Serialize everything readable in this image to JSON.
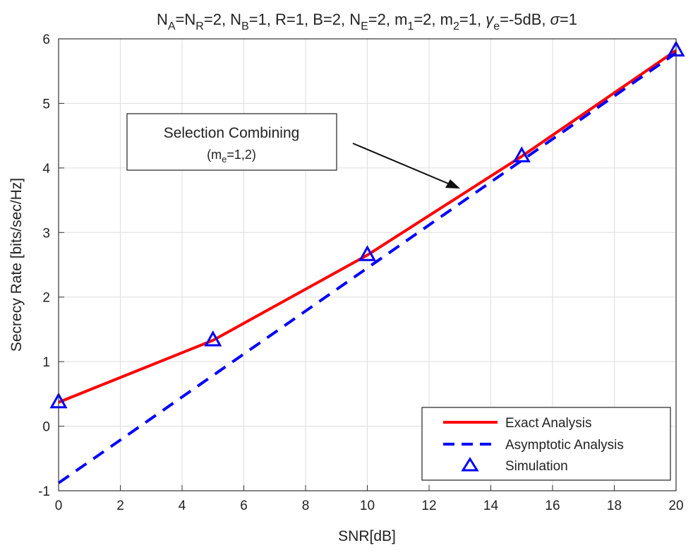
{
  "chart_data": {
    "type": "line",
    "title": "N_A=N_R=2, N_B=1, R=1, B=2, N_E=2, m_1=2, m_2=1, γ_e=-5dB, σ=1",
    "xlabel": "SNR[dB]",
    "ylabel": "Secrecy Rate [bits/sec/Hz]",
    "xlim": [
      0,
      20
    ],
    "ylim": [
      -1,
      6
    ],
    "xticks": [
      0,
      2,
      4,
      6,
      8,
      10,
      12,
      14,
      16,
      18,
      20
    ],
    "yticks": [
      -1,
      0,
      1,
      2,
      3,
      4,
      5,
      6
    ],
    "grid": true,
    "legend_position": "bottom-right",
    "series": [
      {
        "name": "Exact Analysis",
        "style": "solid",
        "color": "#ff0000",
        "x": [
          0,
          5,
          10,
          15,
          20
        ],
        "y": [
          0.37,
          1.33,
          2.65,
          4.18,
          5.82
        ]
      },
      {
        "name": "Asymptotic Analysis",
        "style": "dashed",
        "color": "#0000ff",
        "x": [
          0,
          20
        ],
        "y": [
          -0.88,
          5.78
        ]
      },
      {
        "name": "Simulation",
        "style": "triangle-marker",
        "color": "#0000ff",
        "x": [
          0,
          5,
          10,
          15,
          20
        ],
        "y": [
          0.37,
          1.33,
          2.65,
          4.18,
          5.82
        ]
      }
    ],
    "annotation": {
      "line1": "Selection Combining",
      "line2_base": "(m",
      "line2_sub": "e",
      "line2_rest": "=1,2)",
      "arrow_to": [
        13,
        3.6
      ]
    }
  }
}
